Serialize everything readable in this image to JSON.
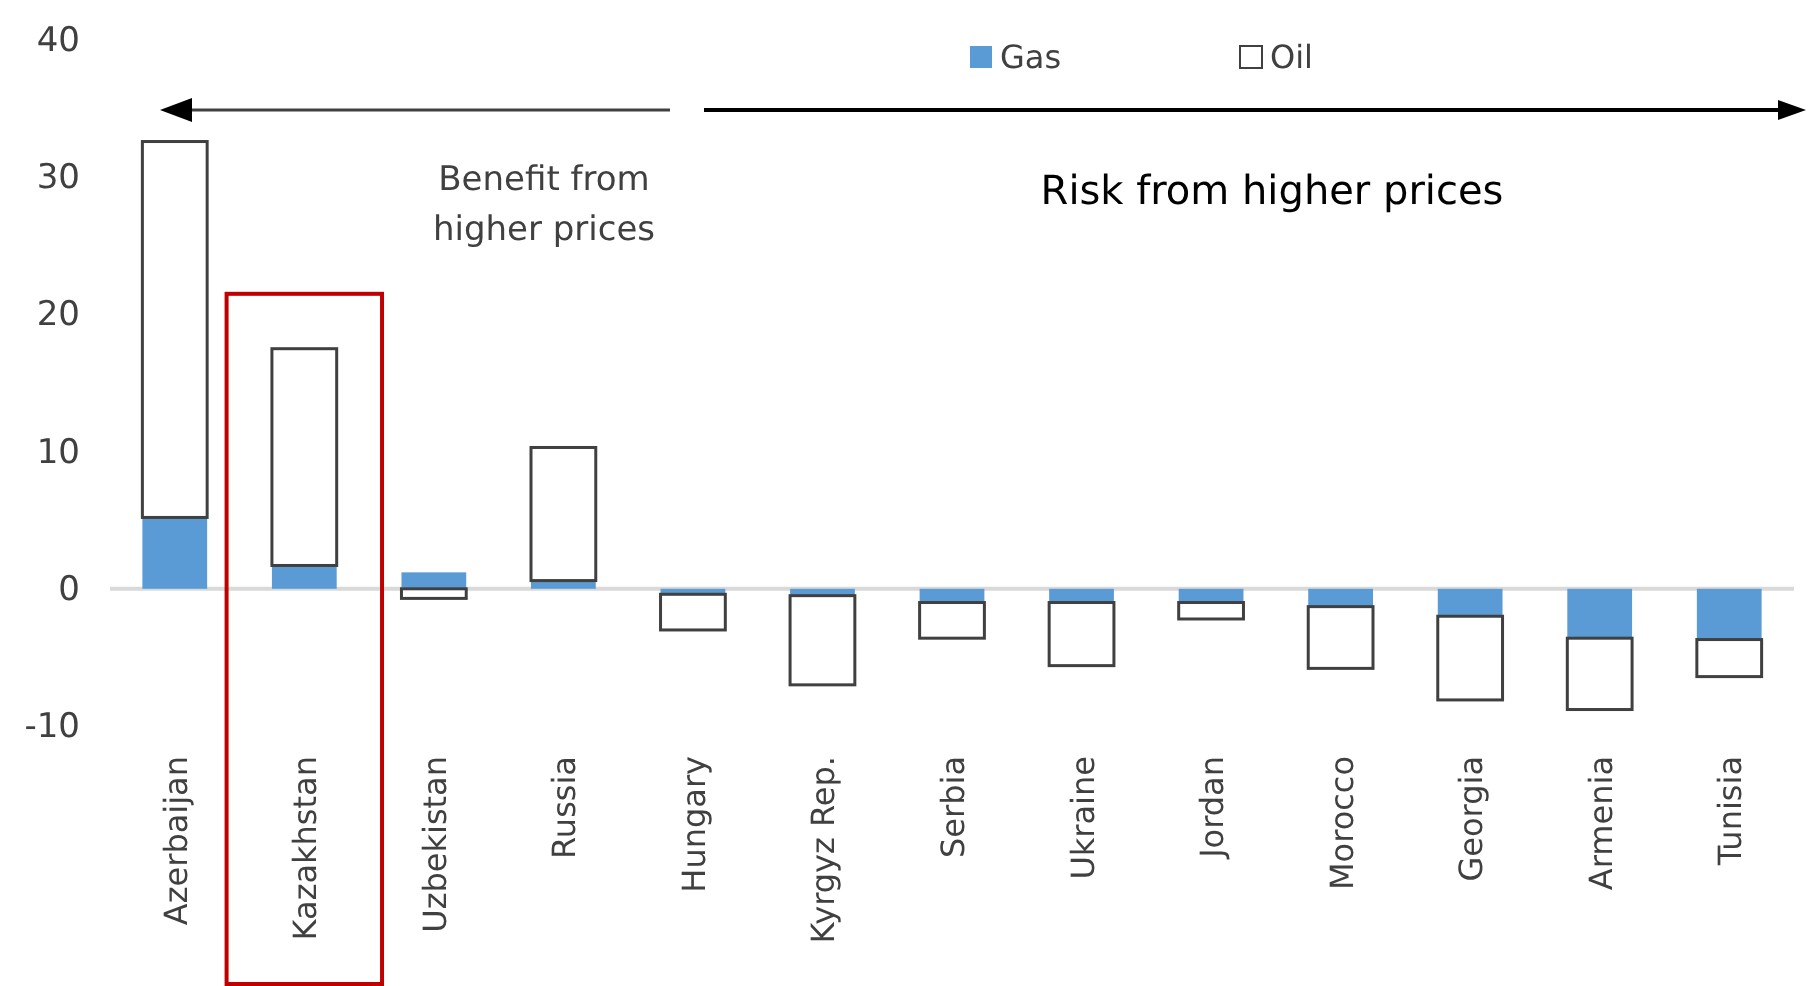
{
  "chart_data": {
    "type": "bar",
    "stacked": true,
    "categories": [
      "Azerbaijan",
      "Kazakhstan",
      "Uzbekistan",
      "Russia",
      "Hungary",
      "Kyrgyz Rep.",
      "Serbia",
      "Ukraine",
      "Jordan",
      "Morocco",
      "Georgia",
      "Armenia",
      "Tunisia"
    ],
    "series": [
      {
        "name": "Gas",
        "color": "#5b9bd5",
        "values": [
          5.2,
          1.7,
          1.2,
          0.6,
          -0.4,
          -0.5,
          -1.0,
          -1.0,
          -1.0,
          -1.3,
          -2.0,
          -3.6,
          -3.7
        ]
      },
      {
        "name": "Oil",
        "color": "#ffffff",
        "values": [
          27.4,
          15.8,
          -0.7,
          9.7,
          -2.6,
          -6.5,
          -2.6,
          -4.6,
          -1.2,
          -4.5,
          -6.1,
          -5.2,
          -2.7
        ]
      }
    ],
    "ylim": [
      -10,
      40
    ],
    "yticks": [
      -10,
      0,
      10,
      20,
      30,
      40
    ],
    "legend": "top",
    "annotations": [
      "Benefit from higher prices",
      "Risk from higher prices"
    ]
  }
}
